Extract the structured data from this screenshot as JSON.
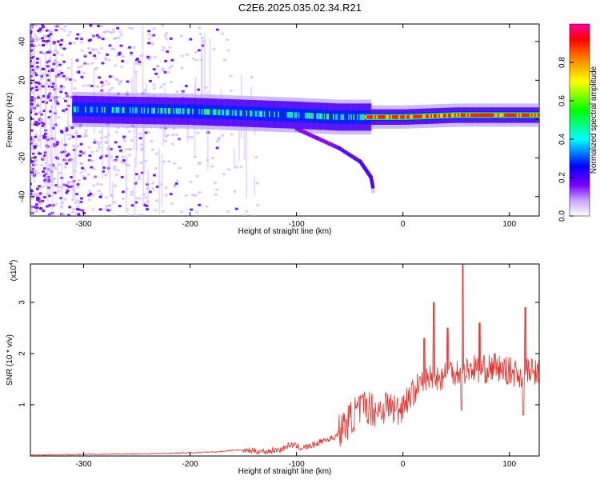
{
  "title": "C2E6.2025.035.02.34.R21",
  "chart_data": [
    {
      "type": "heatmap",
      "xlabel": "Height of straight line (km)",
      "ylabel": "Frequency (Hz)",
      "xlim": [
        -350,
        128
      ],
      "ylim": [
        -50,
        49
      ],
      "x_ticks": [
        -300,
        -200,
        -100,
        0,
        100
      ],
      "y_ticks": [
        -40,
        -20,
        0,
        20,
        40
      ],
      "colorbar": {
        "label": "Normalized spectral amplitude",
        "range": [
          0,
          1
        ],
        "ticks": [
          "0.0",
          "0.2",
          "0.4",
          "0.6",
          "0.8"
        ],
        "colormap": [
          "#ffffff",
          "#c9a6ff",
          "#7a00ff",
          "#0000ff",
          "#00ffff",
          "#00ff00",
          "#ffff00",
          "#ff8000",
          "#ff0000",
          "#ff00a0"
        ]
      },
      "centerline": [
        {
          "x": -310,
          "y": 5
        },
        {
          "x": -200,
          "y": 4
        },
        {
          "x": -150,
          "y": 3
        },
        {
          "x": -100,
          "y": 2
        },
        {
          "x": -60,
          "y": 1
        },
        {
          "x": -30,
          "y": 1
        },
        {
          "x": 0,
          "y": 1
        },
        {
          "x": 50,
          "y": 2
        },
        {
          "x": 100,
          "y": 2
        },
        {
          "x": 128,
          "y": 2
        }
      ],
      "descending_branch": [
        {
          "x": -100,
          "y": -5
        },
        {
          "x": -80,
          "y": -10
        },
        {
          "x": -60,
          "y": -15
        },
        {
          "x": -40,
          "y": -22
        },
        {
          "x": -30,
          "y": -30
        },
        {
          "x": -28,
          "y": -36
        }
      ]
    },
    {
      "type": "line",
      "xlabel": "Height of straight line (km)",
      "ylabel": "SNR (10 * v/v)",
      "y_multiplier": "(x10",
      "y_multiplier_exp": "4",
      "xlim": [
        -350,
        128
      ],
      "ylim": [
        0,
        3.75
      ],
      "x_ticks": [
        -300,
        -200,
        -100,
        0,
        100
      ],
      "y_ticks": [
        1,
        2,
        3
      ],
      "line_color": "#e8312c",
      "series": [
        {
          "x": [
            -350,
            -300,
            -250,
            -200,
            -175,
            -155,
            -145,
            -130,
            -115,
            -105,
            -95,
            -85,
            -75,
            -65,
            -55,
            -45,
            -35,
            -25,
            -15,
            -5,
            5,
            15,
            22,
            28,
            35,
            45,
            55,
            65,
            75,
            85,
            95,
            105,
            112,
            118,
            128
          ],
          "y": [
            0.02,
            0.03,
            0.04,
            0.06,
            0.08,
            0.12,
            0.1,
            0.08,
            0.12,
            0.22,
            0.15,
            0.2,
            0.3,
            0.35,
            0.55,
            0.8,
            0.95,
            0.85,
            0.95,
            0.85,
            1.1,
            1.35,
            1.45,
            1.55,
            1.5,
            1.65,
            1.6,
            1.7,
            1.65,
            1.7,
            1.65,
            1.6,
            1.55,
            1.62,
            1.6
          ]
        }
      ],
      "spikes": [
        {
          "x": 20,
          "y": 2.3
        },
        {
          "x": 29,
          "y": 3.0
        },
        {
          "x": 42,
          "y": 2.5
        },
        {
          "x": 56,
          "y": 3.75
        },
        {
          "x": 72,
          "y": 2.6
        },
        {
          "x": 86,
          "y": 2.0
        },
        {
          "x": 115,
          "y": 2.9
        }
      ],
      "dips": [
        {
          "x": 55,
          "y": 0.9
        },
        {
          "x": 113,
          "y": 0.8
        }
      ]
    }
  ]
}
